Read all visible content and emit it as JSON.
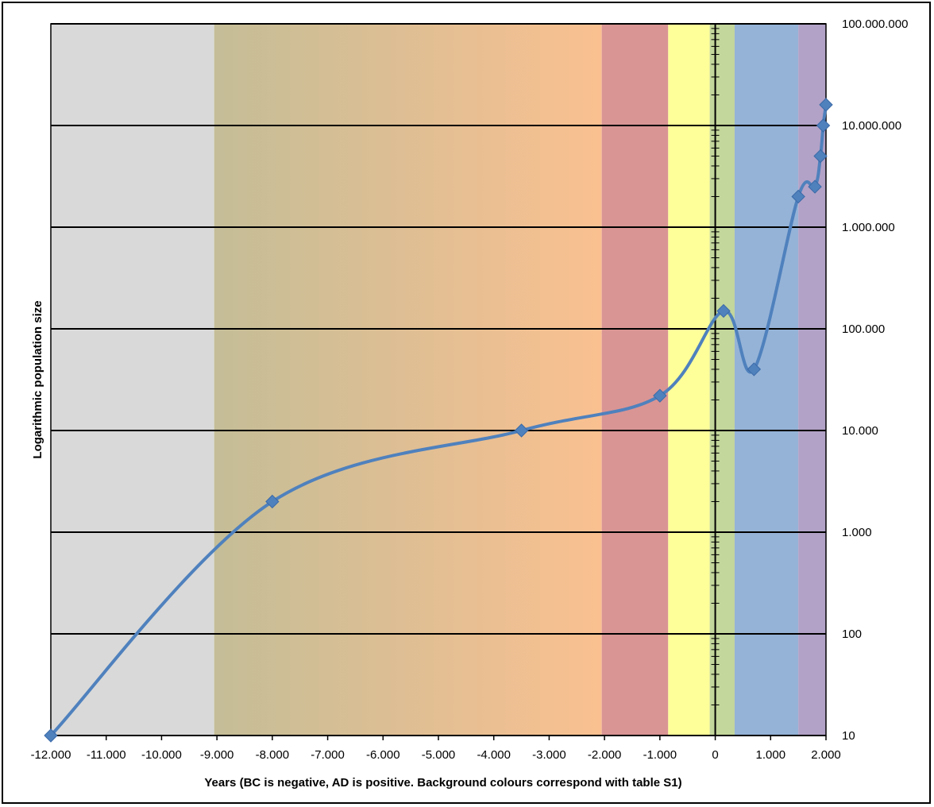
{
  "chart_data": {
    "type": "line",
    "title": "",
    "xlabel": "Years (BC is negative, AD is positive. Background colours correspond with table S1)",
    "ylabel": "Logarithmic population size",
    "y_scale": "log",
    "xlim": [
      -12000,
      2000
    ],
    "ylim": [
      10,
      100000000
    ],
    "grid": "horizontal",
    "legend": "none",
    "x_tick_labels": [
      "-12.000",
      "-11.000",
      "-10.000",
      "-9.000",
      "-8.000",
      "-7.000",
      "-6.000",
      "-5.000",
      "-4.000",
      "-3.000",
      "-2.000",
      "-1.000",
      "0",
      "1.000",
      "2.000"
    ],
    "x_ticks": [
      -12000,
      -11000,
      -10000,
      -9000,
      -8000,
      -7000,
      -6000,
      -5000,
      -4000,
      -3000,
      -2000,
      -1000,
      0,
      1000,
      2000
    ],
    "y_tick_labels": [
      "10",
      "100",
      "1.000",
      "10.000",
      "100.000",
      "1.000.000",
      "10.000.000",
      "100.000.000"
    ],
    "y_ticks": [
      10,
      100,
      1000,
      10000,
      100000,
      1000000,
      10000000,
      100000000
    ],
    "background_periods": [
      {
        "start": -12000,
        "end": -9050,
        "color": "#d9d9d9"
      },
      {
        "start": -9050,
        "end": -2050,
        "color_start": "#c4bd97",
        "color_end": "#fac090"
      },
      {
        "start": -2050,
        "end": -850,
        "color": "#d99594"
      },
      {
        "start": -850,
        "end": -100,
        "color": "#ffff99"
      },
      {
        "start": -100,
        "end": 350,
        "color": "#c3d69b"
      },
      {
        "start": 350,
        "end": 1500,
        "color": "#95b3d7"
      },
      {
        "start": 1500,
        "end": 2000,
        "color": "#b2a2c7"
      }
    ],
    "series": [
      {
        "color": "#4f81bd",
        "x": [
          -12000,
          -8000,
          -3500,
          -1000,
          150,
          700,
          1500,
          1800,
          1900,
          1950,
          2000
        ],
        "values": [
          10,
          2000,
          10000,
          22000,
          150000,
          40000,
          2000000,
          2500000,
          5000000,
          10000000,
          16000000
        ]
      }
    ]
  }
}
